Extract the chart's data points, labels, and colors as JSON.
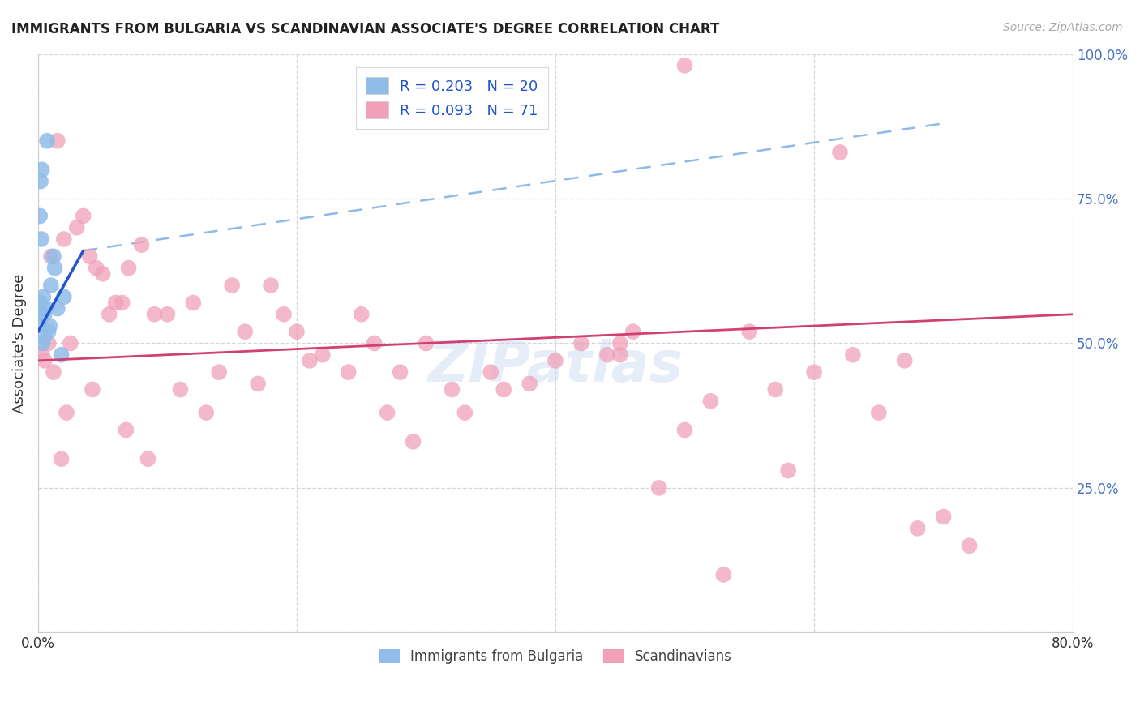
{
  "title": "IMMIGRANTS FROM BULGARIA VS SCANDINAVIAN ASSOCIATE'S DEGREE CORRELATION CHART",
  "source": "Source: ZipAtlas.com",
  "ylabel": "Associate's Degree",
  "blue_color": "#90bce8",
  "pink_color": "#f0a0b8",
  "blue_line_color": "#2255cc",
  "pink_line_color": "#d04070",
  "dashed_line_color": "#90b8e8",
  "watermark": "ZIPatlas",
  "xlim": [
    0,
    80
  ],
  "ylim": [
    0,
    100
  ],
  "x_gridlines": [
    0,
    20,
    40,
    60,
    80
  ],
  "y_gridlines": [
    0,
    25,
    50,
    75,
    100
  ],
  "blue_label": "R = 0.203   N = 20",
  "pink_label": "R = 0.093   N = 71",
  "bottom_legend_blue": "Immigrants from Bulgaria",
  "bottom_legend_pink": "Scandinavians",
  "blue_points_x": [
    0.5,
    1.0,
    1.3,
    0.2,
    0.3,
    0.15,
    0.25,
    0.4,
    0.6,
    0.8,
    1.5,
    2.0,
    0.1,
    0.18,
    0.35,
    0.7,
    0.9,
    1.2,
    0.45,
    1.8
  ],
  "blue_points_y": [
    55,
    60,
    63,
    78,
    80,
    72,
    68,
    58,
    56,
    52,
    56,
    58,
    54,
    57,
    50,
    85,
    53,
    65,
    51,
    48
  ],
  "pink_points_x": [
    0.3,
    0.5,
    0.8,
    1.0,
    1.5,
    2.0,
    2.5,
    3.0,
    3.5,
    4.0,
    4.5,
    5.0,
    5.5,
    6.0,
    6.5,
    7.0,
    8.0,
    9.0,
    10.0,
    11.0,
    12.0,
    13.0,
    14.0,
    15.0,
    16.0,
    17.0,
    18.0,
    19.0,
    20.0,
    22.0,
    24.0,
    25.0,
    26.0,
    27.0,
    28.0,
    29.0,
    30.0,
    32.0,
    33.0,
    35.0,
    36.0,
    38.0,
    40.0,
    42.0,
    44.0,
    45.0,
    46.0,
    48.0,
    50.0,
    52.0,
    53.0,
    55.0,
    57.0,
    58.0,
    60.0,
    62.0,
    63.0,
    65.0,
    67.0,
    68.0,
    70.0,
    72.0,
    1.2,
    1.8,
    2.2,
    4.2,
    6.8,
    8.5,
    21.0,
    45.0,
    50.0
  ],
  "pink_points_y": [
    48,
    47,
    50,
    65,
    85,
    68,
    50,
    70,
    72,
    65,
    63,
    62,
    55,
    57,
    57,
    63,
    67,
    55,
    55,
    42,
    57,
    38,
    45,
    60,
    52,
    43,
    60,
    55,
    52,
    48,
    45,
    55,
    50,
    38,
    45,
    33,
    50,
    42,
    38,
    45,
    42,
    43,
    47,
    50,
    48,
    50,
    52,
    25,
    35,
    40,
    10,
    52,
    42,
    28,
    45,
    83,
    48,
    38,
    47,
    18,
    20,
    15,
    45,
    30,
    38,
    42,
    35,
    30,
    47,
    48,
    98
  ],
  "blue_trendline_x0": 0,
  "blue_trendline_y0": 52,
  "blue_trendline_x1": 3.5,
  "blue_trendline_y1": 66,
  "blue_dash_x0": 3.5,
  "blue_dash_y0": 66,
  "blue_dash_x1": 70,
  "blue_dash_y1": 88,
  "pink_trendline_x0": 0,
  "pink_trendline_y0": 47,
  "pink_trendline_x1": 80,
  "pink_trendline_y1": 55
}
